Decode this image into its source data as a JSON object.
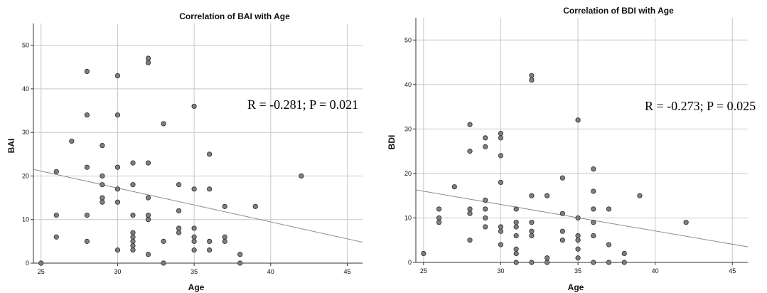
{
  "chart_data": [
    {
      "type": "scatter",
      "title": "Correlation of BAI with Age",
      "xlabel": "Age",
      "ylabel": "BAI",
      "xlim": [
        24.5,
        46
      ],
      "ylim": [
        0,
        55
      ],
      "xticks": [
        25,
        30,
        35,
        40,
        45
      ],
      "yticks": [
        0,
        10,
        20,
        30,
        40,
        50
      ],
      "grid": true,
      "annotation": "R = -0.281; P = 0.021",
      "fit_line": {
        "x": [
          24.5,
          46
        ],
        "y": [
          21.5,
          4.8
        ]
      },
      "points": [
        [
          25,
          0
        ],
        [
          26,
          21
        ],
        [
          26,
          11
        ],
        [
          26,
          6
        ],
        [
          27,
          28
        ],
        [
          28,
          44
        ],
        [
          28,
          34
        ],
        [
          28,
          22
        ],
        [
          28,
          11
        ],
        [
          28,
          5
        ],
        [
          29,
          27
        ],
        [
          29,
          20
        ],
        [
          29,
          18
        ],
        [
          29,
          15
        ],
        [
          29,
          14
        ],
        [
          30,
          43
        ],
        [
          30,
          34
        ],
        [
          30,
          22
        ],
        [
          30,
          17
        ],
        [
          30,
          14
        ],
        [
          30,
          3
        ],
        [
          31,
          23
        ],
        [
          31,
          18
        ],
        [
          31,
          11
        ],
        [
          31,
          7
        ],
        [
          31,
          6
        ],
        [
          31,
          5
        ],
        [
          31,
          4
        ],
        [
          31,
          3
        ],
        [
          32,
          47
        ],
        [
          32,
          46
        ],
        [
          32,
          23
        ],
        [
          32,
          15
        ],
        [
          32,
          11
        ],
        [
          32,
          10
        ],
        [
          32,
          2
        ],
        [
          33,
          32
        ],
        [
          33,
          5
        ],
        [
          33,
          0
        ],
        [
          34,
          18
        ],
        [
          34,
          12
        ],
        [
          34,
          8
        ],
        [
          34,
          7
        ],
        [
          35,
          36
        ],
        [
          35,
          17
        ],
        [
          35,
          8
        ],
        [
          35,
          6
        ],
        [
          35,
          5
        ],
        [
          35,
          3
        ],
        [
          36,
          25
        ],
        [
          36,
          17
        ],
        [
          36,
          5
        ],
        [
          36,
          3
        ],
        [
          37,
          13
        ],
        [
          37,
          6
        ],
        [
          37,
          5
        ],
        [
          38,
          2
        ],
        [
          38,
          0
        ],
        [
          39,
          13
        ],
        [
          42,
          20
        ]
      ]
    },
    {
      "type": "scatter",
      "title": "Correlation of BDI with Age",
      "xlabel": "Age",
      "ylabel": "BDI",
      "xlim": [
        24.5,
        46
      ],
      "ylim": [
        0,
        55
      ],
      "xticks": [
        25,
        30,
        35,
        40,
        45
      ],
      "yticks": [
        0,
        10,
        20,
        30,
        40,
        50
      ],
      "grid": true,
      "annotation": "R = -0.273; P = 0.025",
      "fit_line": {
        "x": [
          24.5,
          46
        ],
        "y": [
          16.3,
          3.5
        ]
      },
      "points": [
        [
          25,
          2
        ],
        [
          26,
          12
        ],
        [
          26,
          10
        ],
        [
          26,
          9
        ],
        [
          27,
          17
        ],
        [
          28,
          31
        ],
        [
          28,
          25
        ],
        [
          28,
          12
        ],
        [
          28,
          11
        ],
        [
          28,
          5
        ],
        [
          29,
          28
        ],
        [
          29,
          26
        ],
        [
          29,
          14
        ],
        [
          29,
          12
        ],
        [
          29,
          10
        ],
        [
          29,
          8
        ],
        [
          30,
          29
        ],
        [
          30,
          28
        ],
        [
          30,
          24
        ],
        [
          30,
          18
        ],
        [
          30,
          8
        ],
        [
          30,
          7
        ],
        [
          30,
          4
        ],
        [
          31,
          12
        ],
        [
          31,
          9
        ],
        [
          31,
          8
        ],
        [
          31,
          6
        ],
        [
          31,
          3
        ],
        [
          31,
          2
        ],
        [
          31,
          0
        ],
        [
          32,
          42
        ],
        [
          32,
          41
        ],
        [
          32,
          15
        ],
        [
          32,
          9
        ],
        [
          32,
          7
        ],
        [
          32,
          6
        ],
        [
          32,
          0
        ],
        [
          33,
          15
        ],
        [
          33,
          1
        ],
        [
          33,
          0
        ],
        [
          34,
          19
        ],
        [
          34,
          11
        ],
        [
          34,
          7
        ],
        [
          34,
          5
        ],
        [
          35,
          32
        ],
        [
          35,
          10
        ],
        [
          35,
          6
        ],
        [
          35,
          5
        ],
        [
          35,
          3
        ],
        [
          35,
          1
        ],
        [
          36,
          21
        ],
        [
          36,
          16
        ],
        [
          36,
          12
        ],
        [
          36,
          9
        ],
        [
          36,
          6
        ],
        [
          36,
          0
        ],
        [
          37,
          12
        ],
        [
          37,
          4
        ],
        [
          37,
          0
        ],
        [
          38,
          2
        ],
        [
          38,
          0
        ],
        [
          39,
          15
        ],
        [
          42,
          9
        ]
      ]
    }
  ]
}
